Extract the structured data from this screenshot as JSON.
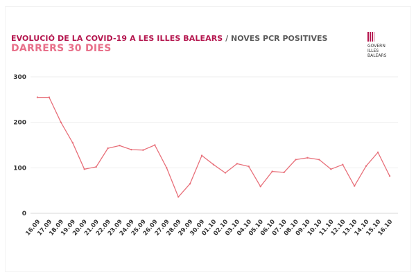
{
  "header": {
    "title_main": "EVOLUCIÓ DE LA COVID-19 A LES ILLES BALEARS",
    "title_separator": " / ",
    "title_sub": "NOVES PCR POSITIVES",
    "subtitle": "DARRERS 30 DIES"
  },
  "logo": {
    "name": "govern-illes-balears-logo",
    "lines": [
      "GOVERN",
      "ILLES",
      "BALEARS"
    ]
  },
  "colors": {
    "title": "#b5174f",
    "subtitle": "#e8708a",
    "line": "#e8707a",
    "grid": "#eeeeee",
    "axis": "#333333"
  },
  "chart_data": {
    "type": "line",
    "title": "EVOLUCIÓ DE LA COVID-19 A LES ILLES BALEARS / NOVES PCR POSITIVES",
    "subtitle": "DARRERS 30 DIES",
    "xlabel": "",
    "ylabel": "",
    "ylim": [
      0,
      300
    ],
    "yticks": [
      0,
      100,
      200,
      300
    ],
    "grid": true,
    "legend": "none",
    "categories": [
      "16.09",
      "17.09",
      "18.09",
      "19.09",
      "20.09",
      "21.09",
      "22.09",
      "23.09",
      "24.09",
      "25.09",
      "26.09",
      "27.09",
      "28.09",
      "29.09",
      "30.09",
      "01.10",
      "02.10",
      "03.10",
      "04.10",
      "05.10",
      "06.10",
      "07.10",
      "08.10",
      "09.10",
      "10.10",
      "11.10",
      "12.10",
      "13.10",
      "14.10",
      "15.10",
      "16.10"
    ],
    "series": [
      {
        "name": "",
        "values": [
          255,
          255,
          200,
          155,
          97,
          102,
          143,
          149,
          140,
          139,
          150,
          100,
          36,
          65,
          127,
          107,
          89,
          109,
          103,
          59,
          92,
          90,
          118,
          122,
          118,
          97,
          107,
          60,
          104,
          134,
          82
        ]
      }
    ]
  }
}
